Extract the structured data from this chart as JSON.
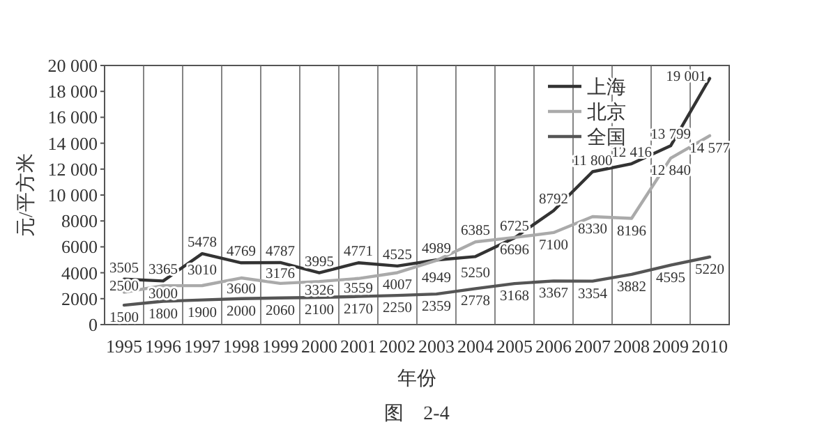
{
  "chart_data": {
    "type": "line",
    "xlabel": "年份",
    "ylabel": "元/平方米",
    "categories": [
      "1995",
      "1996",
      "1997",
      "1998",
      "1999",
      "2000",
      "2001",
      "2002",
      "2003",
      "2004",
      "2005",
      "2006",
      "2007",
      "2008",
      "2009",
      "2010"
    ],
    "series": [
      {
        "name": "上海",
        "color": "#333333",
        "values": [
          3505,
          3365,
          5478,
          4769,
          4787,
          3995,
          4771,
          4525,
          4989,
          5250,
          6696,
          8792,
          11800,
          12416,
          13799,
          19001
        ]
      },
      {
        "name": "北京",
        "color": "#aaaaaa",
        "values": [
          2500,
          3000,
          3010,
          3600,
          3176,
          3326,
          3559,
          4007,
          4949,
          6385,
          6725,
          7100,
          8330,
          8196,
          12840,
          14577
        ]
      },
      {
        "name": "全国",
        "color": "#555555",
        "values": [
          1500,
          1800,
          1900,
          2000,
          2060,
          2100,
          2170,
          2250,
          2359,
          2778,
          3168,
          3367,
          3354,
          3882,
          4595,
          5220
        ]
      }
    ],
    "ylim": [
      0,
      20000
    ],
    "yticks": [
      0,
      2000,
      4000,
      6000,
      8000,
      {
        "value": 10000,
        "label": "10 000"
      },
      {
        "value": 12000,
        "label": "12 000"
      },
      {
        "value": 14000,
        "label": "14 000"
      },
      {
        "value": 16000,
        "label": "16 000"
      },
      {
        "value": 18000,
        "label": "18 000"
      },
      {
        "value": 20000,
        "label": "20 000"
      }
    ],
    "grid": "x",
    "legend": "top right",
    "data_labels": true,
    "line_style": "solid",
    "marker": "none",
    "annotations": [
      "图　2-4"
    ]
  }
}
